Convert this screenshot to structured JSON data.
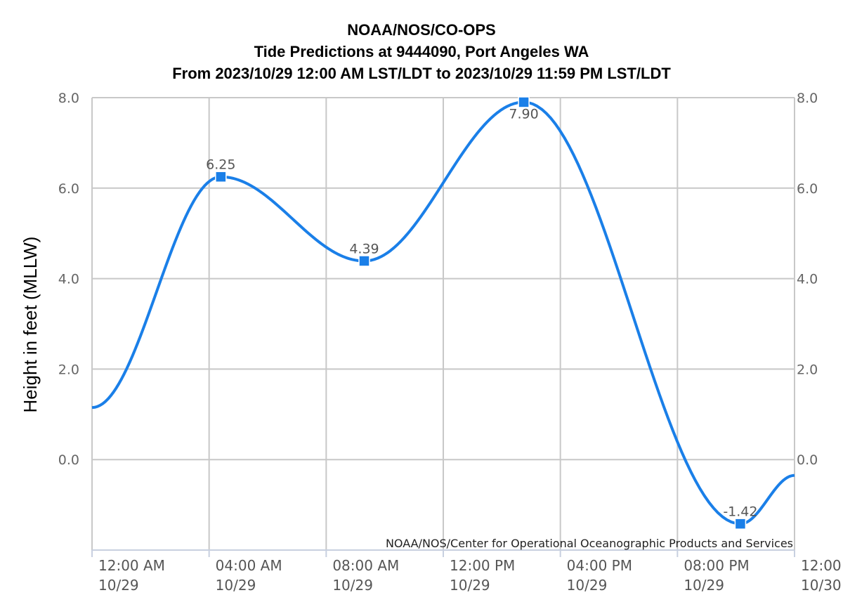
{
  "chart_data": {
    "type": "line",
    "title_lines": [
      "NOAA/NOS/CO-OPS",
      "Tide Predictions at 9444090, Port Angeles WA",
      "From 2023/10/29 12:00 AM LST/LDT to 2023/10/29 11:59 PM LST/LDT"
    ],
    "ylabel": "Height in feet (MLLW)",
    "ylim": [
      -2.0,
      8.0
    ],
    "y_ticks": [
      8.0,
      6.0,
      4.0,
      2.0,
      0.0
    ],
    "y_tick_labels": [
      "8.0",
      "6.0",
      "4.0",
      "2.0",
      "0.0"
    ],
    "xlim_hours": [
      0,
      24
    ],
    "x_ticks": [
      {
        "hour": 0,
        "time": "12:00 AM",
        "date": "10/29"
      },
      {
        "hour": 4,
        "time": "04:00 AM",
        "date": "10/29"
      },
      {
        "hour": 8,
        "time": "08:00 AM",
        "date": "10/29"
      },
      {
        "hour": 12,
        "time": "12:00 PM",
        "date": "10/29"
      },
      {
        "hour": 16,
        "time": "04:00 PM",
        "date": "10/29"
      },
      {
        "hour": 20,
        "time": "08:00 PM",
        "date": "10/29"
      },
      {
        "hour": 24,
        "time": "12:00",
        "date": "10/30"
      }
    ],
    "grid": true,
    "line_color": "#1a7fe8",
    "series": [
      {
        "extremes": [
          {
            "hour": 0.0,
            "value": 1.15
          },
          {
            "hour": 4.4,
            "value": 6.25,
            "label": "6.25"
          },
          {
            "hour": 9.3,
            "value": 4.39,
            "label": "4.39"
          },
          {
            "hour": 14.75,
            "value": 7.9,
            "label": "7.90"
          },
          {
            "hour": 22.15,
            "value": -1.42,
            "label": "-1.42"
          },
          {
            "hour": 24.0,
            "value": -0.35
          }
        ]
      }
    ],
    "credit": "NOAA/NOS/Center for Operational Oceanographic Products and Services"
  }
}
